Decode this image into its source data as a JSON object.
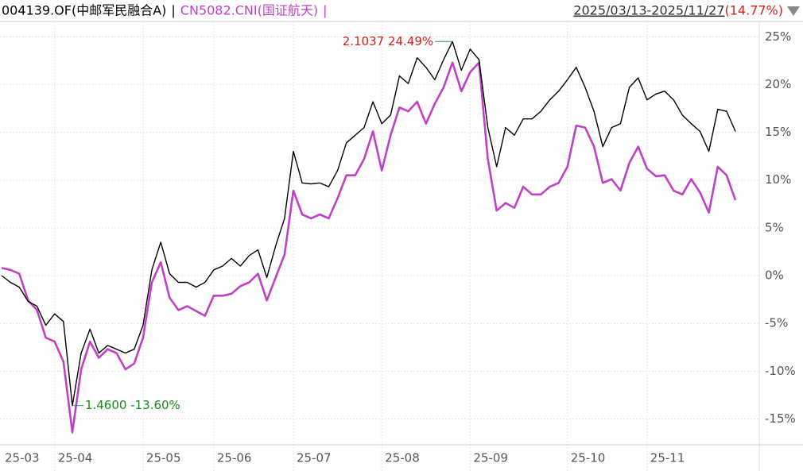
{
  "chart_data": {
    "type": "line",
    "separator": "|",
    "period": "2025/03/13-2025/11/27",
    "period_return": "(14.77%)",
    "categories": [
      "25-03",
      null,
      null,
      null,
      null,
      null,
      "25-04",
      null,
      null,
      null,
      null,
      null,
      null,
      null,
      null,
      null,
      "25-05",
      null,
      null,
      null,
      null,
      null,
      null,
      null,
      "25-06",
      null,
      null,
      null,
      null,
      null,
      null,
      null,
      null,
      "25-07",
      null,
      null,
      null,
      null,
      null,
      null,
      null,
      null,
      null,
      "25-08",
      null,
      null,
      null,
      null,
      null,
      null,
      null,
      null,
      null,
      "25-09",
      null,
      null,
      null,
      null,
      null,
      null,
      null,
      null,
      null,
      null,
      "25-10",
      null,
      null,
      null,
      null,
      null,
      null,
      null,
      null,
      "25-11",
      null,
      null,
      null,
      null,
      null,
      null,
      null,
      null,
      null,
      null
    ],
    "series": [
      {
        "name": "004139.OF(中邮军民融合A)",
        "color": "#000000",
        "values": [
          0,
          -0.7,
          -1.2,
          -2.7,
          -3.2,
          -5.2,
          -4.0,
          -4.8,
          -13.6,
          -8.1,
          -5.6,
          -8.1,
          -7.3,
          -7.7,
          -8.1,
          -7.7,
          -5.2,
          0.6,
          3.5,
          0.2,
          -0.7,
          -0.7,
          -1.2,
          -0.7,
          0.6,
          1.0,
          1.8,
          1.0,
          2.1,
          2.7,
          -0.2,
          3.1,
          6.0,
          13.0,
          9.7,
          9.6,
          9.7,
          9.3,
          11.0,
          13.9,
          14.7,
          15.5,
          18.2,
          15.9,
          16.8,
          20.9,
          20.1,
          22.8,
          21.8,
          20.5,
          22.6,
          24.5,
          21.5,
          23.7,
          22.6,
          15.5,
          11.4,
          15.5,
          14.7,
          16.4,
          16.4,
          17.2,
          18.4,
          19.3,
          20.5,
          21.8,
          19.7,
          17.2,
          13.5,
          15.5,
          15.9,
          19.7,
          20.7,
          18.4,
          19.0,
          19.3,
          18.4,
          16.8,
          15.9,
          15.1,
          13.0,
          17.4,
          17.2,
          15.1
        ]
      },
      {
        "name": "CN5082.CNI(国证航天)",
        "color": "#c040c8",
        "values": [
          0.8,
          0.6,
          0.2,
          -2.6,
          -3.6,
          -6.5,
          -6.9,
          -9.0,
          -16.4,
          -9.8,
          -6.9,
          -8.6,
          -7.7,
          -8.1,
          -9.8,
          -9.2,
          -6.5,
          -0.7,
          1.4,
          -2.3,
          -3.6,
          -3.2,
          -3.7,
          -4.2,
          -2.1,
          -2.1,
          -1.9,
          -1.1,
          -0.7,
          0.2,
          -2.6,
          -0.2,
          2.2,
          8.9,
          6.4,
          6.0,
          6.4,
          6.0,
          8.1,
          10.5,
          10.5,
          12.2,
          15.1,
          11.0,
          14.7,
          17.6,
          17.2,
          18.2,
          15.9,
          18.0,
          19.7,
          22.3,
          19.3,
          21.3,
          22.3,
          12.2,
          6.8,
          7.6,
          7.1,
          9.3,
          8.5,
          8.5,
          9.3,
          9.7,
          11.4,
          15.7,
          15.5,
          13.5,
          9.7,
          10.1,
          8.9,
          11.8,
          13.5,
          11.2,
          10.4,
          10.5,
          8.9,
          8.5,
          10.1,
          8.7,
          6.6,
          11.4,
          10.5,
          7.9
        ]
      }
    ],
    "annotations": [
      {
        "text": "2.1037 24.49%",
        "color": "#d42020"
      },
      {
        "text": "1.4600 -13.60%",
        "color": "#1a8a1a"
      }
    ],
    "ylim": [
      -17.7,
      26.6
    ],
    "yticks": [
      {
        "value": 25,
        "label": "25%"
      },
      {
        "value": 20,
        "label": "20%"
      },
      {
        "value": 15,
        "label": "15%"
      },
      {
        "value": 10,
        "label": "10%"
      },
      {
        "value": 5,
        "label": "5%"
      },
      {
        "value": 0,
        "label": "0%"
      },
      {
        "value": -5,
        "label": "-5%"
      },
      {
        "value": -10,
        "label": "-10%"
      },
      {
        "value": -15,
        "label": "-15%"
      }
    ],
    "grid": true
  }
}
